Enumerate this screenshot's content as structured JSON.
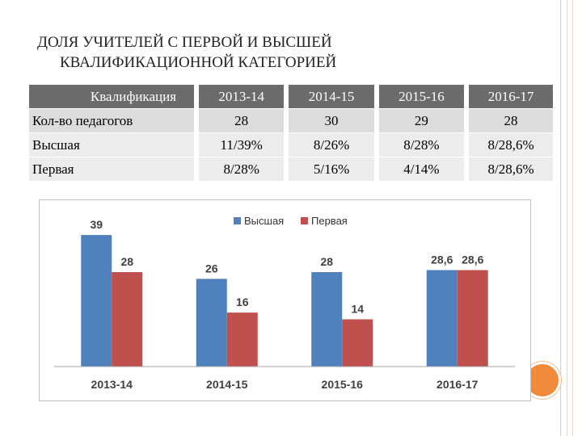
{
  "title": {
    "line1": "ДОЛЯ УЧИТЕЛЕЙ С ПЕРВОЙ И ВЫСШЕЙ",
    "line2": "КВАЛИФИКАЦИОННОЙ КАТЕГОРИЕЙ"
  },
  "table": {
    "header": [
      "Квалификация",
      "2013-14",
      "2014-15",
      "2015-16",
      "2016-17"
    ],
    "rows": [
      {
        "label": "Кол-во педагогов",
        "cells": [
          "28",
          "30",
          "29",
          "28"
        ]
      },
      {
        "label": "Высшая",
        "cells": [
          "11/39%",
          "8/26%",
          "8/28%",
          "8/28,6%"
        ]
      },
      {
        "label": "Первая",
        "cells": [
          "8/28%",
          "5/16%",
          "4/14%",
          "8/28,6%"
        ]
      }
    ]
  },
  "chart_data": {
    "type": "bar",
    "categories": [
      "2013-14",
      "2014-15",
      "2015-16",
      "2016-17"
    ],
    "series": [
      {
        "name": "Высшая",
        "values": [
          39,
          26,
          28,
          28.6
        ],
        "labels": [
          "39",
          "26",
          "28",
          "28,6"
        ],
        "color": "#4f81bd"
      },
      {
        "name": "Первая",
        "values": [
          28,
          16,
          14,
          28.6
        ],
        "labels": [
          "28",
          "16",
          "14",
          "28,6"
        ],
        "color": "#c0504d"
      }
    ],
    "ylim": [
      0,
      45
    ],
    "legend": "top-center",
    "grid": false,
    "axis_color": "#a6a6a6"
  },
  "decor": {
    "circle_color": "#f28a3c"
  }
}
